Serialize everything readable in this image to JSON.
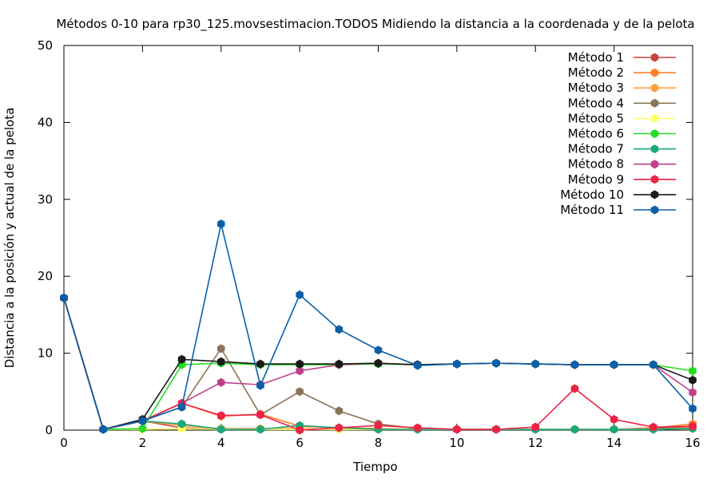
{
  "chart_data": {
    "type": "line",
    "title": "Métodos 0-10 para rp30_125.movsestimacion.TODOS Midiendo la distancia a la coordenada y de la pelota",
    "xlabel": "Tiempo",
    "ylabel": "Distancia a la posición y actual de la pelota",
    "xlim": [
      0,
      16
    ],
    "ylim": [
      0,
      50
    ],
    "xticks": [
      "0",
      "2",
      "4",
      "6",
      "8",
      "10",
      "12",
      "14",
      "16"
    ],
    "yticks": [
      "0",
      "10",
      "20",
      "30",
      "40",
      "50"
    ],
    "grid": false,
    "legend_position": "top-right",
    "x": [
      0,
      1,
      2,
      3,
      4,
      5,
      6,
      7,
      8,
      9,
      10,
      11,
      12,
      13,
      14,
      15,
      16
    ],
    "series": [
      {
        "name": "Método 1",
        "color": "#c8443c",
        "values": [
          17.2,
          0.1,
          1.2,
          0.3,
          0.1,
          0.1,
          0.1,
          0.1,
          0.1,
          0.1,
          0.1,
          0.1,
          0.1,
          0.1,
          0.1,
          0.2,
          0.3
        ]
      },
      {
        "name": "Método 2",
        "color": "#ff7f2a",
        "values": [
          17.2,
          0.1,
          1.2,
          3.5,
          1.8,
          2.1,
          0.5,
          0.3,
          0.2,
          0.1,
          0.1,
          0.1,
          0.1,
          0.1,
          0.1,
          0.3,
          0.8
        ]
      },
      {
        "name": "Método 3",
        "color": "#ffa040",
        "values": [
          17.2,
          0.1,
          1.2,
          0.6,
          0.2,
          0.2,
          0.2,
          0.1,
          0.1,
          0.1,
          0.1,
          0.1,
          0.1,
          0.1,
          0.1,
          0.2,
          0.3
        ]
      },
      {
        "name": "Método 4",
        "color": "#8b7355",
        "values": [
          17.2,
          0.1,
          1.2,
          3.0,
          10.6,
          2.0,
          5.0,
          2.5,
          0.8,
          0.2,
          0.1,
          0.1,
          0.1,
          0.1,
          0.1,
          0.2,
          0.5
        ]
      },
      {
        "name": "Método 5",
        "color": "#ffff66",
        "values": [
          17.2,
          0.1,
          0.1,
          0.2,
          0.1,
          0.1,
          0.1,
          0.1,
          0.1,
          0.1,
          0.1,
          0.1,
          0.1,
          0.1,
          0.1,
          0.1,
          0.2
        ]
      },
      {
        "name": "Método 6",
        "color": "#22dd22",
        "values": [
          17.2,
          0.1,
          0.2,
          8.5,
          8.7,
          8.5,
          8.5,
          8.5,
          8.6,
          8.5,
          8.6,
          8.7,
          8.6,
          8.5,
          8.5,
          8.5,
          7.7
        ]
      },
      {
        "name": "Método 7",
        "color": "#1aa87a",
        "values": [
          17.2,
          0.1,
          1.2,
          0.8,
          0.1,
          0.1,
          0.6,
          0.3,
          0.1,
          0.1,
          0.1,
          0.1,
          0.1,
          0.1,
          0.1,
          0.1,
          0.2
        ]
      },
      {
        "name": "Método 8",
        "color": "#c0408a",
        "values": [
          17.2,
          0.1,
          1.2,
          3.5,
          6.2,
          5.9,
          7.7,
          8.5,
          8.7,
          8.5,
          8.6,
          8.7,
          8.6,
          8.5,
          8.5,
          8.5,
          4.9
        ]
      },
      {
        "name": "Método 9",
        "color": "#ee2244",
        "values": [
          17.2,
          0.1,
          1.2,
          3.5,
          1.9,
          2.0,
          0.0,
          0.3,
          0.6,
          0.3,
          0.1,
          0.1,
          0.4,
          5.4,
          1.4,
          0.4,
          0.5
        ]
      },
      {
        "name": "Método 10",
        "color": "#1a1a1a",
        "values": [
          17.2,
          0.1,
          1.4,
          9.2,
          8.9,
          8.6,
          8.6,
          8.6,
          8.7,
          8.5,
          8.6,
          8.7,
          8.6,
          8.5,
          8.5,
          8.5,
          6.5
        ]
      },
      {
        "name": "Método 11",
        "color": "#0a5fa8",
        "values": [
          17.2,
          0.1,
          1.2,
          3.0,
          26.8,
          5.8,
          17.6,
          13.1,
          10.4,
          8.4,
          8.6,
          8.7,
          8.6,
          8.5,
          8.5,
          8.5,
          2.8
        ]
      }
    ]
  }
}
